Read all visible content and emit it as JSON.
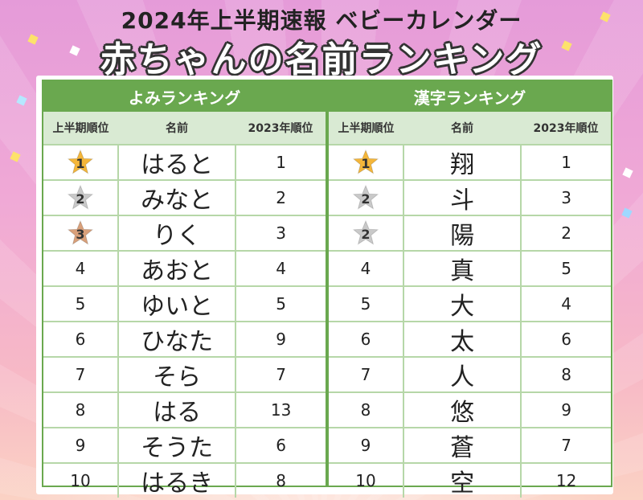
{
  "header": {
    "title_top": "2024年上半期速報 ベビーカレンダー",
    "title_main": "赤ちゃんの名前ランキング"
  },
  "colors": {
    "gold": "#f4b63a",
    "silver": "#c9c9c9",
    "bronze": "#d9a07a",
    "green": "#6aa84f"
  },
  "yomi": {
    "title": "よみランキング",
    "columns": [
      "上半期順位",
      "名前",
      "2023年順位"
    ],
    "rows": [
      {
        "rank": "1",
        "name": "はると",
        "prev": "1",
        "medal": "gold"
      },
      {
        "rank": "2",
        "name": "みなと",
        "prev": "2",
        "medal": "silver"
      },
      {
        "rank": "3",
        "name": "りく",
        "prev": "3",
        "medal": "bronze"
      },
      {
        "rank": "4",
        "name": "あおと",
        "prev": "4",
        "medal": ""
      },
      {
        "rank": "5",
        "name": "ゆいと",
        "prev": "5",
        "medal": ""
      },
      {
        "rank": "6",
        "name": "ひなた",
        "prev": "9",
        "medal": ""
      },
      {
        "rank": "7",
        "name": "そら",
        "prev": "7",
        "medal": ""
      },
      {
        "rank": "8",
        "name": "はる",
        "prev": "13",
        "medal": ""
      },
      {
        "rank": "9",
        "name": "そうた",
        "prev": "6",
        "medal": ""
      },
      {
        "rank": "10",
        "name": "はるき",
        "prev": "8",
        "medal": ""
      }
    ]
  },
  "kanji": {
    "title": "漢字ランキング",
    "columns": [
      "上半期順位",
      "名前",
      "2023年順位"
    ],
    "rows": [
      {
        "rank": "1",
        "name": "翔",
        "prev": "1",
        "medal": "gold"
      },
      {
        "rank": "2",
        "name": "斗",
        "prev": "3",
        "medal": "silver"
      },
      {
        "rank": "2",
        "name": "陽",
        "prev": "2",
        "medal": "silver"
      },
      {
        "rank": "4",
        "name": "真",
        "prev": "5",
        "medal": ""
      },
      {
        "rank": "5",
        "name": "大",
        "prev": "4",
        "medal": ""
      },
      {
        "rank": "6",
        "name": "太",
        "prev": "6",
        "medal": ""
      },
      {
        "rank": "7",
        "name": "人",
        "prev": "8",
        "medal": ""
      },
      {
        "rank": "8",
        "name": "悠",
        "prev": "9",
        "medal": ""
      },
      {
        "rank": "9",
        "name": "蒼",
        "prev": "7",
        "medal": ""
      },
      {
        "rank": "10",
        "name": "空",
        "prev": "12",
        "medal": ""
      }
    ]
  }
}
